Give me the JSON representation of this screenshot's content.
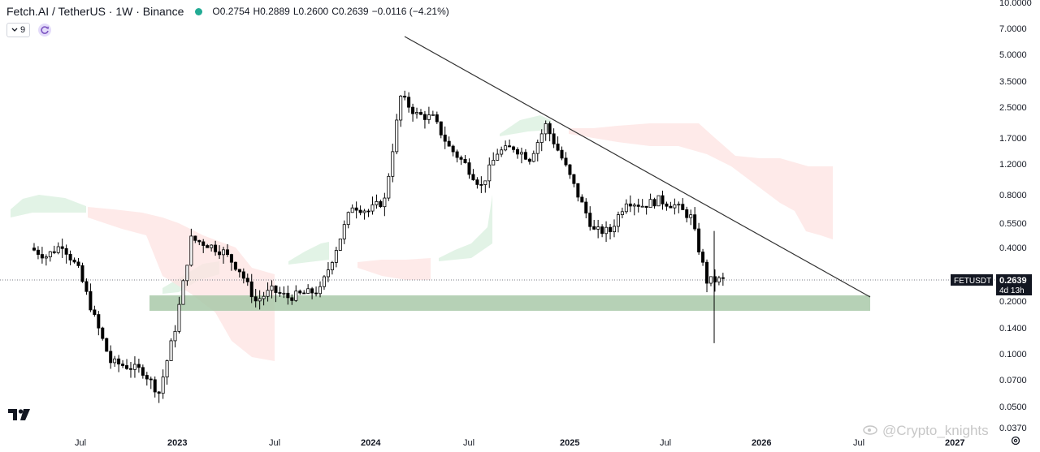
{
  "header": {
    "symbol": "Fetch.AI / TetherUS · 1W · Binance",
    "open": "O0.2754",
    "high": "H0.2889",
    "low": "L0.2600",
    "close": "C0.2639",
    "change": "−0.0116 (−4.21%)"
  },
  "controls": {
    "interval_value": "9"
  },
  "watermark": {
    "text": "@Crypto_knights"
  },
  "colors": {
    "up": "#000000",
    "down": "#000000",
    "kumo_bull": "#d8efdd",
    "kumo_bear": "#fde3e1",
    "support_zone": "#a9c9a9",
    "trendline": "#333333"
  },
  "price_tag": {
    "ticker": "FETUSDT",
    "price": "0.2639",
    "countdown": "4d 13h"
  },
  "chart_data": {
    "type": "candlestick",
    "scale": "log",
    "ylim": [
      0.036,
      10
    ],
    "x_ticks": [
      "Jul",
      "2023",
      "Jul",
      "2024",
      "Jul",
      "2025",
      "Jul",
      "2026",
      "Jul",
      "2027"
    ],
    "y_ticks": [
      "10.0000",
      "7.0000",
      "5.0000",
      "3.5000",
      "2.5000",
      "1.7000",
      "1.2000",
      "0.8000",
      "0.5500",
      "0.4000",
      "0.2639",
      "0.2000",
      "0.1400",
      "0.1000",
      "0.0700",
      "0.0500",
      "0.0370"
    ],
    "current_price": 0.2639,
    "support_zone": {
      "low": 0.17,
      "high": 0.215
    },
    "trendline": {
      "from": {
        "date": "2024-02",
        "price": 6.2
      },
      "to": {
        "date": "2026-06",
        "price": 0.215
      }
    },
    "price_path_approx": [
      {
        "date": "2022-04",
        "price": 0.4
      },
      {
        "date": "2022-05",
        "price": 0.36
      },
      {
        "date": "2022-06",
        "price": 0.42
      },
      {
        "date": "2022-07",
        "price": 0.3
      },
      {
        "date": "2022-08",
        "price": 0.16
      },
      {
        "date": "2022-09",
        "price": 0.09
      },
      {
        "date": "2022-10",
        "price": 0.085
      },
      {
        "date": "2022-11",
        "price": 0.08
      },
      {
        "date": "2022-12",
        "price": 0.06
      },
      {
        "date": "2023-01",
        "price": 0.14
      },
      {
        "date": "2023-02",
        "price": 0.45
      },
      {
        "date": "2023-03",
        "price": 0.42
      },
      {
        "date": "2023-04",
        "price": 0.38
      },
      {
        "date": "2023-05",
        "price": 0.3
      },
      {
        "date": "2023-06",
        "price": 0.2
      },
      {
        "date": "2023-07",
        "price": 0.23
      },
      {
        "date": "2023-08",
        "price": 0.21
      },
      {
        "date": "2023-09",
        "price": 0.22
      },
      {
        "date": "2023-10",
        "price": 0.23
      },
      {
        "date": "2023-11",
        "price": 0.4
      },
      {
        "date": "2023-12",
        "price": 0.7
      },
      {
        "date": "2024-01",
        "price": 0.65
      },
      {
        "date": "2024-02",
        "price": 0.75
      },
      {
        "date": "2024-03",
        "price": 2.9
      },
      {
        "date": "2024-04",
        "price": 2.3
      },
      {
        "date": "2024-05",
        "price": 2.2
      },
      {
        "date": "2024-06",
        "price": 1.5
      },
      {
        "date": "2024-07",
        "price": 1.2
      },
      {
        "date": "2024-08",
        "price": 0.9
      },
      {
        "date": "2024-09",
        "price": 1.4
      },
      {
        "date": "2024-10",
        "price": 1.5
      },
      {
        "date": "2024-11",
        "price": 1.3
      },
      {
        "date": "2024-12",
        "price": 2.0
      },
      {
        "date": "2025-01",
        "price": 1.3
      },
      {
        "date": "2025-02",
        "price": 0.8
      },
      {
        "date": "2025-03",
        "price": 0.5
      },
      {
        "date": "2025-04",
        "price": 0.5
      },
      {
        "date": "2025-05",
        "price": 0.75
      },
      {
        "date": "2025-06",
        "price": 0.7
      },
      {
        "date": "2025-07",
        "price": 0.75
      },
      {
        "date": "2025-08",
        "price": 0.7
      },
      {
        "date": "2025-09",
        "price": 0.6
      },
      {
        "date": "2025-10",
        "price": 0.26
      },
      {
        "date": "2025-11",
        "price": 0.2639
      }
    ]
  }
}
